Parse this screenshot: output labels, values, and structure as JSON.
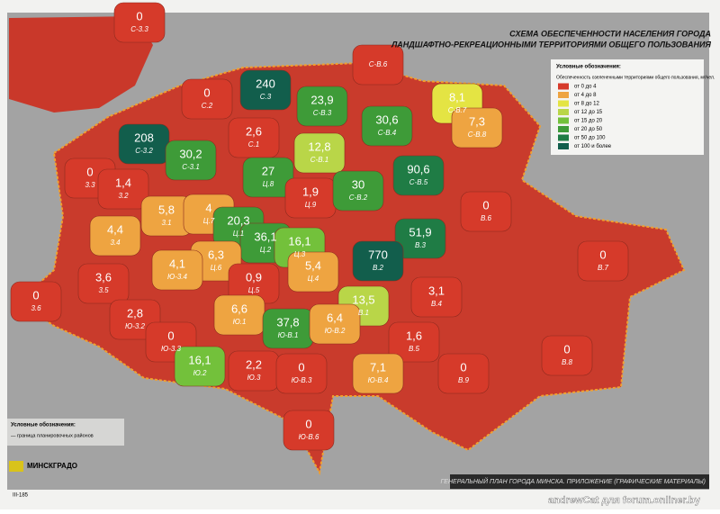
{
  "header": {
    "title1": "СХЕМА ОБЕСПЕЧЕННОСТИ НАСЕЛЕНИЯ ГОРОДА",
    "title2": "ЛАНДШАФТНО-РЕКРЕАЦИОННЫМИ ТЕРРИТОРИЯМИ ОБЩЕГО ПОЛЬЗОВАНИЯ"
  },
  "legend": {
    "title": "Условные обозначения:",
    "subtitle": "Обеспеченность озелененными территориями общего пользования, м²/чел.",
    "items": [
      {
        "label": "от 0 до 4",
        "color": "#d63a2a"
      },
      {
        "label": "от 4 до 8",
        "color": "#eea441"
      },
      {
        "label": "от 8 до 12",
        "color": "#e4e443"
      },
      {
        "label": "от 12 до 15",
        "color": "#b9d648"
      },
      {
        "label": "от 15 до 20",
        "color": "#73c13b"
      },
      {
        "label": "от 20 до 50",
        "color": "#3e9b38"
      },
      {
        "label": "от 50 до 100",
        "color": "#1f7c45"
      },
      {
        "label": "от 100 и более",
        "color": "#125e4c"
      }
    ]
  },
  "districts": [
    {
      "value": "0",
      "code": "С-3.3",
      "color": "#d63a2a"
    },
    {
      "value": "208",
      "code": "С-3.2",
      "color": "#125e4c"
    },
    {
      "value": "0",
      "code": "С.2",
      "color": "#d63a2a"
    },
    {
      "value": "240",
      "code": "С.3",
      "color": "#125e4c"
    },
    {
      "code": "С-В.6",
      "color": "#d63a2a"
    },
    {
      "value": "23,9",
      "code": "С-В.3",
      "color": "#3e9b38"
    },
    {
      "value": "30,6",
      "code": "С-В.4",
      "color": "#3e9b38"
    },
    {
      "value": "8,1",
      "code": "С-В.7",
      "color": "#e4e443"
    },
    {
      "value": "7,3",
      "code": "С-В.8",
      "color": "#eea441"
    },
    {
      "value": "2,6",
      "code": "С.1",
      "color": "#d63a2a"
    },
    {
      "value": "12,8",
      "code": "С-В.1",
      "color": "#b9d648"
    },
    {
      "value": "30,2",
      "code": "С-3.1",
      "color": "#3e9b38"
    },
    {
      "value": "0",
      "code": "3.3",
      "color": "#d63a2a"
    },
    {
      "value": "1,4",
      "code": "3.2",
      "color": "#d63a2a"
    },
    {
      "value": "27",
      "code": "Ц.8",
      "color": "#3e9b38"
    },
    {
      "value": "1,9",
      "code": "Ц.9",
      "color": "#d63a2a"
    },
    {
      "value": "30",
      "code": "С-В.2",
      "color": "#3e9b38"
    },
    {
      "value": "90,6",
      "code": "С-В.5",
      "color": "#1f7c45"
    },
    {
      "value": "0",
      "code": "В.6",
      "color": "#d63a2a"
    },
    {
      "value": "5,8",
      "code": "3.1",
      "color": "#eea441"
    },
    {
      "value": "4",
      "code": "Ц.7",
      "color": "#eea441"
    },
    {
      "value": "20,3",
      "code": "Ц.1",
      "color": "#3e9b38"
    },
    {
      "value": "36,1",
      "code": "Ц.2",
      "color": "#3e9b38"
    },
    {
      "value": "16,1",
      "code": "Ц.3",
      "color": "#73c13b"
    },
    {
      "value": "51,9",
      "code": "В.3",
      "color": "#1f7c45"
    },
    {
      "value": "4,4",
      "code": "3.4",
      "color": "#eea441"
    },
    {
      "value": "6,3",
      "code": "Ц.6",
      "color": "#eea441"
    },
    {
      "value": "4,1",
      "code": "Ю-3.4",
      "color": "#eea441"
    },
    {
      "value": "770",
      "code": "В.2",
      "color": "#125e4c"
    },
    {
      "value": "0",
      "code": "В.7",
      "color": "#d63a2a"
    },
    {
      "value": "5,4",
      "code": "Ц.4",
      "color": "#eea441"
    },
    {
      "value": "3,6",
      "code": "3.5",
      "color": "#d63a2a"
    },
    {
      "value": "0,9",
      "code": "Ц.5",
      "color": "#d63a2a"
    },
    {
      "value": "0",
      "code": "3.6",
      "color": "#d63a2a"
    },
    {
      "value": "3,1",
      "code": "В.4",
      "color": "#d63a2a"
    },
    {
      "value": "13,5",
      "code": "В.1",
      "color": "#b9d648"
    },
    {
      "value": "6,6",
      "code": "Ю.1",
      "color": "#eea441"
    },
    {
      "value": "2,8",
      "code": "Ю-3.2",
      "color": "#d63a2a"
    },
    {
      "value": "37,8",
      "code": "Ю-В.1",
      "color": "#3e9b38"
    },
    {
      "value": "6,4",
      "code": "Ю-В.2",
      "color": "#eea441"
    },
    {
      "value": "0",
      "code": "Ю-3.3",
      "color": "#d63a2a"
    },
    {
      "value": "1,6",
      "code": "В.5",
      "color": "#d63a2a"
    },
    {
      "value": "0",
      "code": "В.8",
      "color": "#d63a2a"
    },
    {
      "value": "16,1",
      "code": "Ю.2",
      "color": "#73c13b"
    },
    {
      "value": "2,2",
      "code": "Ю.3",
      "color": "#d63a2a"
    },
    {
      "value": "0",
      "code": "Ю-В.3",
      "color": "#d63a2a"
    },
    {
      "value": "7,1",
      "code": "Ю-В.4",
      "color": "#eea441"
    },
    {
      "value": "0",
      "code": "В.9",
      "color": "#d63a2a"
    },
    {
      "value": "0",
      "code": "Ю-В.6",
      "color": "#d63a2a"
    }
  ],
  "footer": {
    "legend_title": "Условные обозначения:",
    "boundary_label": "— граница планировочных районов",
    "logo": "МИНСКГРАДО",
    "strip": "ГЕНЕРАЛЬНЫЙ ПЛАН ГОРОДА МИНСКА. ПРИЛОЖЕНИЕ (ГРАФИЧЕСКИЕ МАТЕРИАЛЫ)",
    "page": "III-185"
  },
  "watermark": "andrewCat для forum.onliner.by"
}
